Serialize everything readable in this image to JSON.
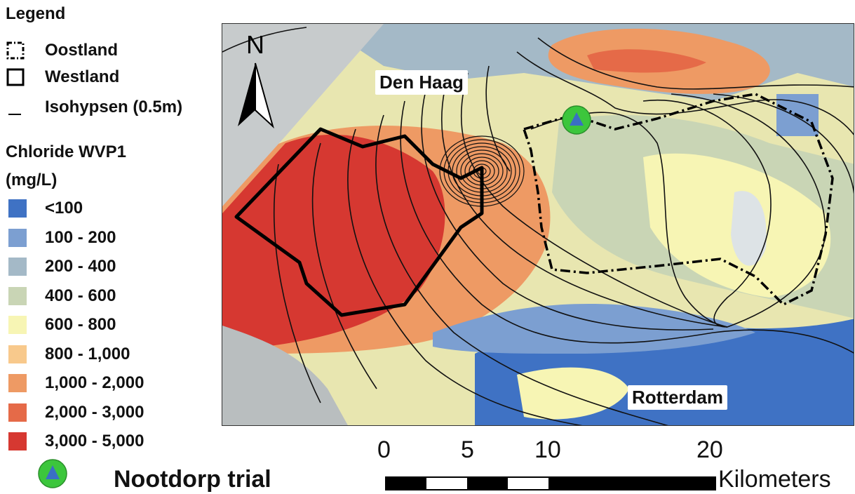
{
  "legend": {
    "title": "Legend",
    "boundaries": [
      {
        "label": "Oostland",
        "style": "dash-dot"
      },
      {
        "label": "Westland",
        "style": "solid"
      },
      {
        "label": "Isohypsen (0.5m)",
        "style": "line"
      }
    ],
    "chloride_title": "Chloride WVP1",
    "chloride_unit": "(mg/L)",
    "classes": [
      {
        "label": "<100",
        "color": "#3f72c4"
      },
      {
        "label": "100 - 200",
        "color": "#7c9fd1"
      },
      {
        "label": "200 - 400",
        "color": "#a4b9c7"
      },
      {
        "label": "400 - 600",
        "color": "#c9d5b5"
      },
      {
        "label": "600 - 800",
        "color": "#f7f5b4"
      },
      {
        "label": "800 - 1,000",
        "color": "#f8c98c"
      },
      {
        "label": "1,000 - 2,000",
        "color": "#ee9a64"
      },
      {
        "label": "2,000 - 3,000",
        "color": "#e56a48"
      },
      {
        "label": "3,000 - 5,000",
        "color": "#d63831"
      }
    ],
    "trial": {
      "label": "Nootdorp trial",
      "icon": "green-circle-blue-triangle-icon",
      "circle_color": "#3cc63c",
      "triangle_color": "#3a6fc4"
    }
  },
  "map": {
    "cities": [
      "Den Haag",
      "Rotterdam"
    ],
    "north_label": "N",
    "sea_color": "#c7cbcc",
    "coastal_gray_color": "#b9bebf"
  },
  "scalebar": {
    "ticks": [
      "0",
      "5",
      "10",
      "20"
    ],
    "unit": "Kilometers"
  }
}
